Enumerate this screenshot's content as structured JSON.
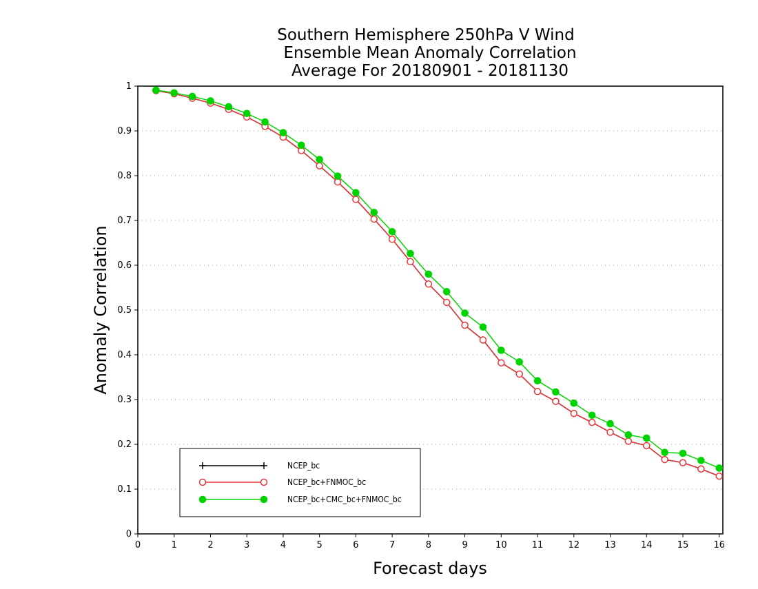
{
  "chart_data": {
    "type": "line",
    "title_lines": [
      "Southern Hemisphere 250hPa V Wind",
      "Ensemble Mean Anomaly Correlation",
      "Average For 20180901 - 20181130"
    ],
    "xlabel": "Forecast days",
    "ylabel": "Anomaly Correlation",
    "xlim": [
      0,
      16.1
    ],
    "ylim": [
      0,
      1
    ],
    "x_ticks": [
      "0",
      "1",
      "2",
      "3",
      "4",
      "5",
      "6",
      "7",
      "8",
      "9",
      "10",
      "11",
      "12",
      "13",
      "14",
      "15",
      "16"
    ],
    "y_ticks": [
      "0",
      "0.1",
      "0.2",
      "0.3",
      "0.4",
      "0.5",
      "0.6",
      "0.7",
      "0.8",
      "0.9",
      "1"
    ],
    "grid": "horizontal dotted",
    "legend_position": "bottom-left",
    "x": [
      0.5,
      1,
      1.5,
      2,
      2.5,
      3,
      3.5,
      4,
      4.5,
      5,
      5.5,
      6,
      6.5,
      7,
      7.5,
      8,
      8.5,
      9,
      9.5,
      10,
      10.5,
      11,
      11.5,
      12,
      12.5,
      13,
      13.5,
      14,
      14.5,
      15,
      15.5,
      16
    ],
    "series": [
      {
        "name": "NCEP_bc",
        "color": "#000000",
        "marker": "plus",
        "values": [
          0.99,
          0.983,
          0.973,
          0.962,
          0.948,
          0.931,
          0.91,
          0.886,
          0.856,
          0.822,
          0.786,
          0.747,
          0.703,
          0.658,
          0.608,
          0.558,
          0.517,
          0.466,
          0.433,
          0.382,
          0.357,
          0.318,
          0.296,
          0.269,
          0.249,
          0.227,
          0.207,
          0.197,
          0.166,
          0.159,
          0.145,
          0.129
        ]
      },
      {
        "name": "NCEP_bc+FNMOC_bc",
        "color": "#e8363a",
        "marker": "open-circle",
        "values": [
          0.99,
          0.983,
          0.973,
          0.962,
          0.948,
          0.931,
          0.91,
          0.886,
          0.856,
          0.822,
          0.786,
          0.747,
          0.703,
          0.658,
          0.608,
          0.558,
          0.517,
          0.466,
          0.433,
          0.382,
          0.357,
          0.318,
          0.296,
          0.269,
          0.249,
          0.227,
          0.207,
          0.197,
          0.166,
          0.159,
          0.145,
          0.129
        ]
      },
      {
        "name": "NCEP_bc+CMC_bc+FNMOC_bc",
        "color": "#00d400",
        "marker": "filled-circle",
        "values": [
          0.991,
          0.985,
          0.977,
          0.967,
          0.954,
          0.939,
          0.92,
          0.896,
          0.868,
          0.836,
          0.799,
          0.762,
          0.718,
          0.675,
          0.626,
          0.58,
          0.541,
          0.493,
          0.462,
          0.41,
          0.384,
          0.342,
          0.317,
          0.292,
          0.265,
          0.246,
          0.221,
          0.214,
          0.182,
          0.18,
          0.164,
          0.147
        ]
      }
    ]
  }
}
